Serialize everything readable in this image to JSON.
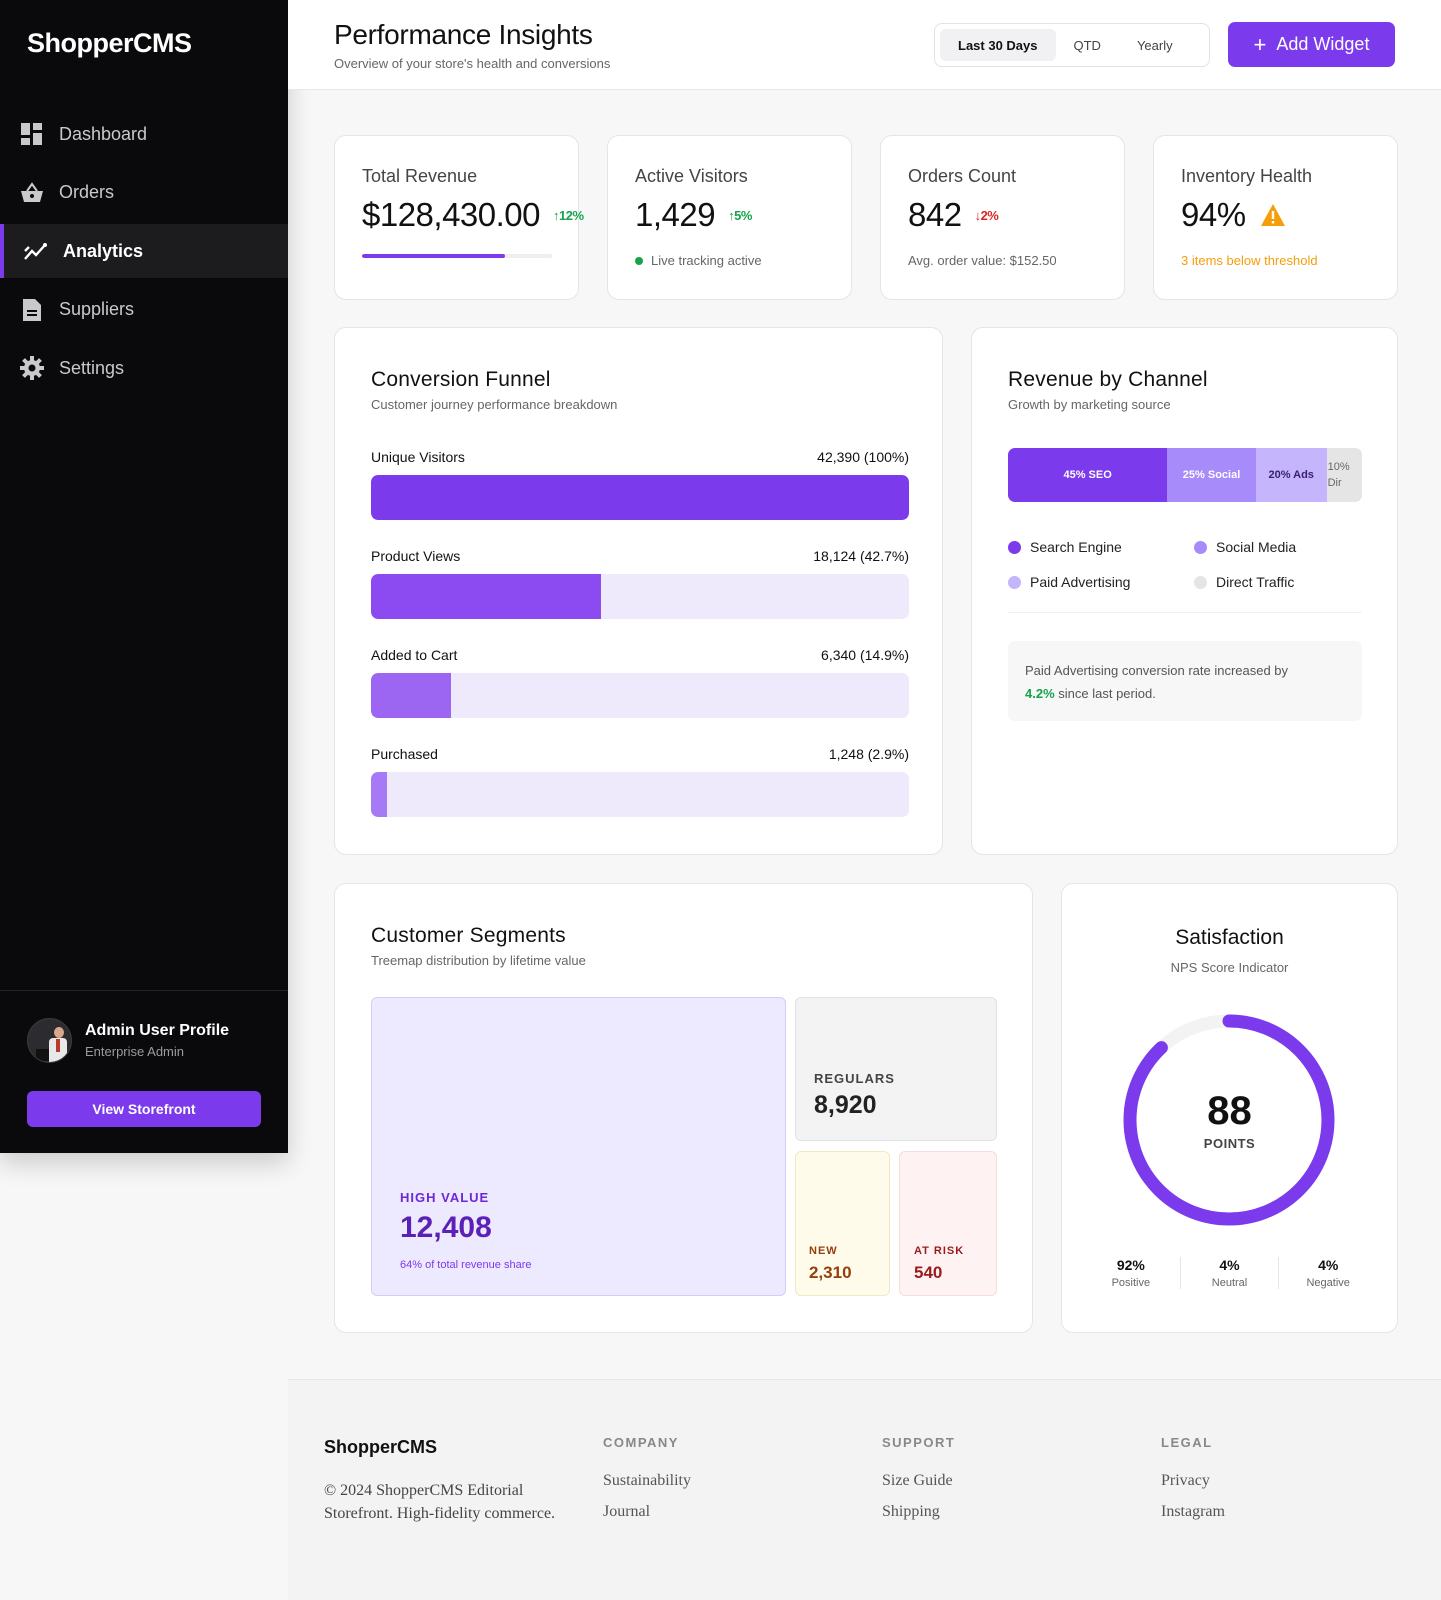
{
  "app": {
    "logo": "ShopperCMS"
  },
  "sidebar": {
    "items": [
      {
        "label": "Dashboard",
        "icon": "dashboard-icon",
        "active": false
      },
      {
        "label": "Orders",
        "icon": "basket-icon",
        "active": false
      },
      {
        "label": "Analytics",
        "icon": "analytics-icon",
        "active": true
      },
      {
        "label": "Suppliers",
        "icon": "document-icon",
        "active": false
      },
      {
        "label": "Settings",
        "icon": "gear-icon",
        "active": false
      }
    ],
    "profile": {
      "name": "Admin User Profile",
      "role": "Enterprise Admin"
    },
    "storefront_button": "View Storefront"
  },
  "header": {
    "title": "Performance Insights",
    "subtitle": "Overview of your store's health and conversions",
    "ranges": [
      "Last 30 Days",
      "QTD",
      "Yearly"
    ],
    "active_range": "Last 30 Days",
    "add_widget": "Add Widget"
  },
  "kpis": {
    "revenue": {
      "label": "Total Revenue",
      "value": "$128,430.00",
      "trend": "↑12%",
      "progress": 0.75
    },
    "visitors": {
      "label": "Active Visitors",
      "value": "1,429",
      "trend": "↑5%",
      "note": "Live tracking active"
    },
    "orders": {
      "label": "Orders Count",
      "value": "842",
      "trend": "↓2%",
      "note": "Avg. order value: $152.50"
    },
    "inventory": {
      "label": "Inventory Health",
      "value": "94%",
      "icon": "warning-icon",
      "note": "3 items below threshold"
    }
  },
  "funnel": {
    "title": "Conversion Funnel",
    "subtitle": "Customer journey performance breakdown",
    "stages": [
      {
        "label": "Unique Visitors",
        "value": "42,390 (100%)",
        "pct": 100
      },
      {
        "label": "Product Views",
        "value": "18,124 (42.7%)",
        "pct": 42.7
      },
      {
        "label": "Added to Cart",
        "value": "6,340 (14.9%)",
        "pct": 14.9
      },
      {
        "label": "Purchased",
        "value": "1,248 (2.9%)",
        "pct": 2.9
      }
    ]
  },
  "channel": {
    "title": "Revenue by Channel",
    "subtitle": "Growth by marketing source",
    "segments": [
      {
        "label": "45% SEO",
        "pct": 45,
        "color": "#7c3aed"
      },
      {
        "label": "25% Social",
        "pct": 25,
        "color": "#a78bfa"
      },
      {
        "label": "20% Ads",
        "pct": 20,
        "color": "#c4b5fd"
      },
      {
        "label": "10% Dir",
        "pct": 10,
        "color": "#e5e5e5"
      }
    ],
    "legend": [
      {
        "label": "Search Engine",
        "color": "#7c3aed"
      },
      {
        "label": "Social Media",
        "color": "#a78bfa"
      },
      {
        "label": "Paid Advertising",
        "color": "#c4b5fd"
      },
      {
        "label": "Direct Traffic",
        "color": "#e5e5e5"
      }
    ],
    "insight_pre": "Paid Advertising conversion rate increased by",
    "insight_value": "4.2%",
    "insight_post": "since last period."
  },
  "segments": {
    "title": "Customer Segments",
    "subtitle": "Treemap distribution by lifetime value",
    "high_value": {
      "label": "HIGH VALUE",
      "value": "12,408",
      "note": "64% of total revenue share"
    },
    "regulars": {
      "label": "REGULARS",
      "value": "8,920"
    },
    "new": {
      "label": "NEW",
      "value": "2,310"
    },
    "at_risk": {
      "label": "AT RISK",
      "value": "540"
    }
  },
  "satisfaction": {
    "title": "Satisfaction",
    "subtitle": "NPS Score Indicator",
    "score": "88",
    "score_value": 88,
    "unit": "POINTS",
    "stats": [
      {
        "value": "92%",
        "label": "Positive"
      },
      {
        "value": "4%",
        "label": "Neutral"
      },
      {
        "value": "4%",
        "label": "Negative"
      }
    ]
  },
  "footer": {
    "brand": "ShopperCMS",
    "copyright": "© 2024 ShopperCMS Editorial Storefront. High-fidelity commerce.",
    "columns": [
      {
        "head": "COMPANY",
        "links": [
          "Sustainability",
          "Journal"
        ]
      },
      {
        "head": "SUPPORT",
        "links": [
          "Size Guide",
          "Shipping"
        ]
      },
      {
        "head": "LEGAL",
        "links": [
          "Privacy",
          "Instagram"
        ]
      }
    ]
  }
}
